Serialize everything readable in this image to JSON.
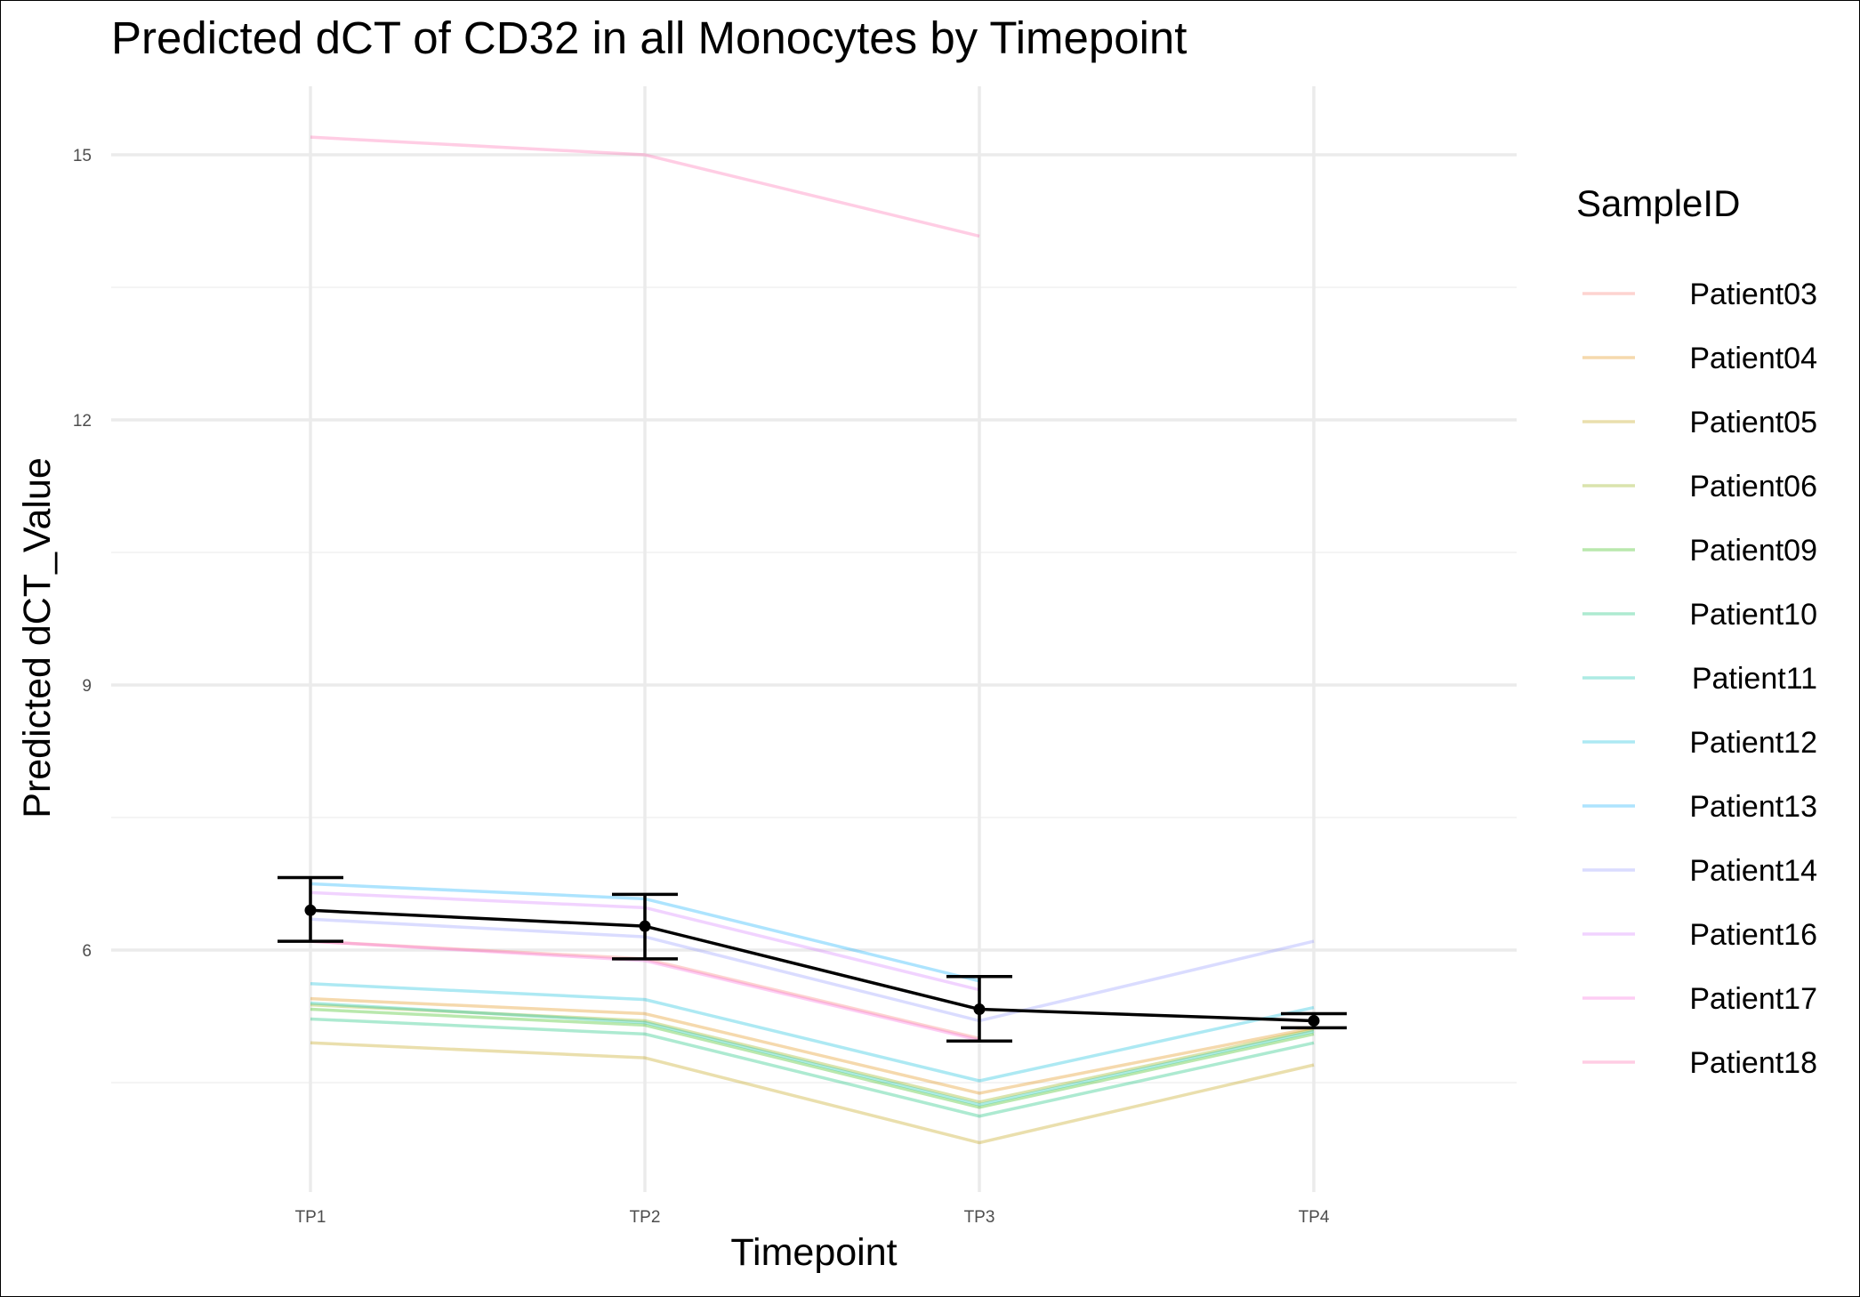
{
  "chart_data": {
    "type": "line",
    "title": "Predicted dCT of  CD32 in  all  Monocytes by Timepoint",
    "xlabel": "Timepoint",
    "ylabel": "Predicted dCT_Value",
    "categories": [
      "TP1",
      "TP2",
      "TP3",
      "TP4"
    ],
    "ylim": [
      2.3,
      16.4
    ],
    "y_ticks": [
      6,
      9,
      12,
      15
    ],
    "y_minor_ticks": [
      4.5,
      7.5,
      10.5,
      13.5
    ],
    "grid": true,
    "legend": {
      "title": "SampleID",
      "placement": "right"
    },
    "series": [
      {
        "name": "Patient03",
        "color": "#F8766D",
        "values": [
          6.1,
          5.9,
          5.0,
          null
        ]
      },
      {
        "name": "Patient04",
        "color": "#E18A00",
        "values": [
          5.45,
          5.28,
          4.38,
          5.12
        ]
      },
      {
        "name": "Patient05",
        "color": "#BE9C00",
        "values": [
          4.95,
          4.78,
          3.82,
          4.7
        ]
      },
      {
        "name": "Patient06",
        "color": "#8CAB00",
        "values": [
          5.38,
          5.2,
          4.28,
          5.1
        ]
      },
      {
        "name": "Patient09",
        "color": "#24B700",
        "values": [
          5.33,
          5.15,
          4.22,
          5.05
        ]
      },
      {
        "name": "Patient10",
        "color": "#00BE70",
        "values": [
          5.22,
          5.05,
          4.12,
          4.95
        ]
      },
      {
        "name": "Patient11",
        "color": "#00C1AB",
        "values": [
          5.4,
          5.18,
          4.25,
          5.08
        ]
      },
      {
        "name": "Patient12",
        "color": "#00BBDA",
        "values": [
          5.62,
          5.44,
          4.52,
          5.35
        ]
      },
      {
        "name": "Patient13",
        "color": "#00ACFC",
        "values": [
          6.75,
          6.58,
          5.65,
          null
        ]
      },
      {
        "name": "Patient14",
        "color": "#8B93FF",
        "values": [
          6.35,
          6.15,
          5.2,
          6.1
        ]
      },
      {
        "name": "Patient16",
        "color": "#D575FE",
        "values": [
          6.65,
          6.48,
          5.55,
          null
        ]
      },
      {
        "name": "Patient17",
        "color": "#F962DD",
        "values": [
          6.1,
          5.88,
          4.98,
          null
        ]
      },
      {
        "name": "Patient18",
        "color": "#FF65AC",
        "values": [
          15.2,
          15.0,
          14.08,
          null
        ]
      }
    ],
    "mean": {
      "values": [
        6.45,
        6.27,
        5.33,
        5.2
      ],
      "error_low": [
        6.1,
        5.9,
        4.97,
        5.12
      ],
      "error_high": [
        6.82,
        6.63,
        5.7,
        5.28
      ],
      "color": "#000000"
    }
  }
}
